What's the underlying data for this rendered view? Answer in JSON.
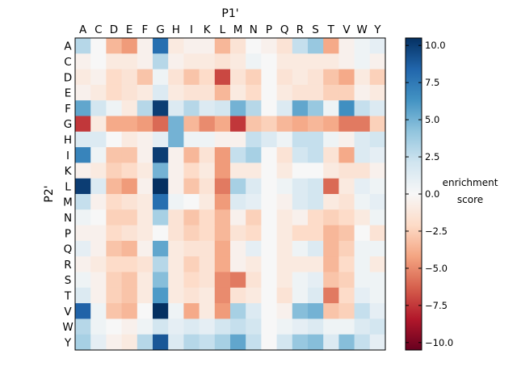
{
  "chart_data": {
    "type": "heatmap",
    "title": "",
    "xlabel": "P1'",
    "ylabel": "P2'",
    "x_categories": [
      "A",
      "C",
      "D",
      "E",
      "F",
      "G",
      "H",
      "I",
      "K",
      "L",
      "M",
      "N",
      "P",
      "Q",
      "R",
      "S",
      "T",
      "V",
      "W",
      "Y"
    ],
    "y_categories": [
      "A",
      "C",
      "D",
      "E",
      "F",
      "G",
      "H",
      "I",
      "K",
      "L",
      "M",
      "N",
      "P",
      "Q",
      "R",
      "S",
      "T",
      "V",
      "W",
      "Y"
    ],
    "colormap": "RdBu",
    "vmin": -10.5,
    "vmax": 10.5,
    "colorbar": {
      "label_lines": [
        "enrichment",
        "score"
      ],
      "ticks": [
        10.0,
        7.5,
        5.0,
        2.5,
        0.0,
        -2.5,
        -5.0,
        -7.5,
        -10.0
      ],
      "tick_labels": [
        "10.0",
        "7.5",
        "5.0",
        "2.5",
        "0.0",
        "−2.5",
        "−5.0",
        "−7.5",
        "−10.0"
      ]
    },
    "values": [
      [
        3.0,
        0.0,
        -3.5,
        -4.5,
        -0.5,
        8.0,
        -1.0,
        -0.5,
        -0.5,
        -3.5,
        -1.5,
        0.0,
        -0.5,
        -1.5,
        2.5,
        4.0,
        -4.0,
        -0.5,
        0.5,
        1.0
      ],
      [
        -0.5,
        0.0,
        -1.0,
        -1.0,
        -0.5,
        3.0,
        -0.5,
        -1.0,
        -1.0,
        -1.5,
        -1.0,
        0.5,
        0.0,
        -1.0,
        -1.0,
        -1.0,
        -1.0,
        -0.5,
        0.5,
        -0.5
      ],
      [
        -1.0,
        -0.5,
        -2.0,
        -1.5,
        -3.0,
        0.5,
        -1.5,
        -3.0,
        -2.0,
        -7.0,
        -1.5,
        -2.5,
        0.0,
        -1.5,
        -1.0,
        -1.5,
        -3.0,
        -4.0,
        -1.0,
        -2.5
      ],
      [
        -0.5,
        -1.0,
        -2.0,
        -1.5,
        -1.0,
        1.5,
        -1.0,
        -1.5,
        -1.5,
        -3.5,
        -1.0,
        -2.0,
        0.0,
        -1.0,
        -1.5,
        -1.5,
        -2.5,
        -2.5,
        -0.5,
        -1.0
      ],
      [
        5.5,
        2.0,
        0.5,
        -1.0,
        3.0,
        10.0,
        1.5,
        3.0,
        1.5,
        2.0,
        5.0,
        3.0,
        0.0,
        1.5,
        5.5,
        4.0,
        0.5,
        6.5,
        2.5,
        1.5
      ],
      [
        -7.5,
        -1.0,
        -4.0,
        -4.0,
        -4.5,
        -6.0,
        5.0,
        -3.5,
        -5.0,
        -4.0,
        -7.5,
        -3.0,
        -2.5,
        -3.5,
        -4.0,
        -3.5,
        -4.0,
        -5.5,
        -5.5,
        -2.5
      ],
      [
        1.5,
        1.5,
        0.0,
        -1.0,
        -0.5,
        1.0,
        5.0,
        0.5,
        0.5,
        -0.5,
        -0.5,
        2.5,
        1.5,
        0.5,
        2.5,
        2.5,
        0.5,
        -0.5,
        1.5,
        2.0
      ],
      [
        7.0,
        0.5,
        -3.0,
        -3.0,
        -0.5,
        10.0,
        -0.5,
        -3.5,
        -1.5,
        -4.5,
        2.5,
        3.5,
        0.0,
        -1.5,
        2.0,
        2.5,
        -1.5,
        -4.0,
        1.5,
        1.0
      ],
      [
        -0.5,
        -1.0,
        -2.5,
        -2.0,
        -1.0,
        5.0,
        -0.5,
        -2.0,
        -1.0,
        -4.5,
        -1.0,
        -1.0,
        0.0,
        -1.0,
        0.0,
        0.0,
        -1.0,
        -1.5,
        -1.5,
        -0.5
      ],
      [
        10.0,
        1.5,
        -3.5,
        -4.5,
        -0.5,
        10.5,
        -0.5,
        -3.0,
        -1.5,
        -5.5,
        3.5,
        1.5,
        0.0,
        0.5,
        1.5,
        2.0,
        -6.0,
        -1.0,
        1.0,
        0.5
      ],
      [
        2.5,
        -0.5,
        -2.0,
        -1.5,
        -1.0,
        8.0,
        0.5,
        0.0,
        -1.0,
        -4.5,
        1.5,
        1.0,
        0.0,
        -0.5,
        1.5,
        2.0,
        -1.0,
        -1.5,
        0.5,
        1.0
      ],
      [
        0.5,
        0.0,
        -2.5,
        -2.5,
        -1.0,
        3.5,
        -1.5,
        -3.0,
        -2.0,
        -3.5,
        -0.5,
        -2.5,
        0.0,
        -1.0,
        -0.5,
        -2.0,
        -2.5,
        -2.0,
        -1.0,
        0.5
      ],
      [
        -0.5,
        -0.5,
        -2.0,
        -1.5,
        -1.0,
        0.0,
        -1.5,
        -2.5,
        -2.0,
        -3.5,
        -1.5,
        -2.0,
        0.0,
        -1.0,
        -2.0,
        -2.0,
        -3.5,
        -3.0,
        0.0,
        -1.5
      ],
      [
        1.0,
        -0.5,
        -3.0,
        -3.5,
        -0.5,
        5.5,
        -1.0,
        -1.5,
        -1.5,
        -4.0,
        -0.5,
        1.0,
        0.0,
        -1.0,
        0.5,
        1.5,
        -3.5,
        -2.5,
        0.5,
        0.5
      ],
      [
        -0.5,
        -1.0,
        -2.0,
        -2.0,
        -1.5,
        3.0,
        -1.0,
        -2.5,
        -1.5,
        -4.0,
        -0.5,
        -1.0,
        0.0,
        -1.0,
        -1.0,
        -1.0,
        -3.5,
        -2.0,
        0.5,
        -1.0
      ],
      [
        0.5,
        -0.5,
        -2.5,
        -3.0,
        -1.0,
        4.5,
        -1.0,
        -2.0,
        -1.5,
        -5.0,
        -5.5,
        -1.5,
        0.0,
        -1.0,
        0.5,
        1.0,
        -3.0,
        -2.5,
        0.5,
        0.5
      ],
      [
        1.5,
        -0.5,
        -2.5,
        -3.0,
        -1.0,
        6.0,
        -1.0,
        -1.5,
        -1.0,
        -5.0,
        -1.5,
        -1.0,
        0.0,
        -1.5,
        0.5,
        1.5,
        -5.5,
        -2.0,
        1.0,
        0.5
      ],
      [
        8.5,
        0.5,
        -3.0,
        -3.5,
        0.0,
        10.5,
        0.5,
        -4.0,
        -1.0,
        -4.5,
        3.5,
        1.5,
        0.0,
        -0.5,
        4.5,
        5.0,
        -3.0,
        -2.5,
        2.5,
        1.0
      ],
      [
        3.0,
        0.5,
        0.0,
        -0.5,
        0.5,
        2.0,
        1.0,
        1.5,
        1.0,
        2.0,
        2.5,
        2.0,
        0.0,
        0.5,
        1.0,
        1.5,
        0.5,
        0.5,
        1.5,
        2.0
      ],
      [
        3.5,
        1.0,
        -0.5,
        -1.0,
        3.0,
        9.0,
        1.5,
        3.0,
        2.5,
        3.5,
        5.5,
        2.5,
        0.0,
        2.0,
        4.0,
        4.5,
        1.5,
        4.5,
        2.5,
        1.0
      ]
    ]
  }
}
